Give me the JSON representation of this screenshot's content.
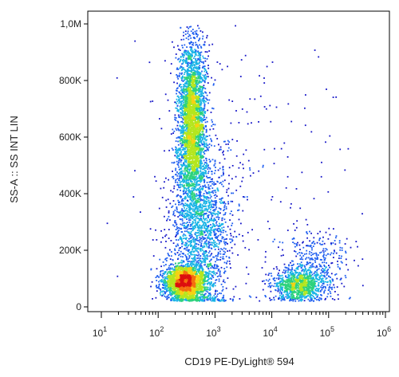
{
  "chart_data": {
    "type": "scatter",
    "subtype": "flow-cytometry density dot plot",
    "xlabel": "CD19 PE-DyLight® 594",
    "ylabel": "SS-A :: SS INT LIN",
    "xscale": "log",
    "yscale": "linear",
    "xlim": [
      10,
      1000000
    ],
    "ylim": [
      0,
      1000000
    ],
    "x_ticks": [
      {
        "value": 10,
        "base": "10",
        "exp": "1"
      },
      {
        "value": 100,
        "base": "10",
        "exp": "2"
      },
      {
        "value": 1000,
        "base": "10",
        "exp": "3"
      },
      {
        "value": 10000,
        "base": "10",
        "exp": "4"
      },
      {
        "value": 100000,
        "base": "10",
        "exp": "5"
      },
      {
        "value": 1000000,
        "base": "10",
        "exp": "6"
      }
    ],
    "y_ticks": [
      {
        "value": 0,
        "label": "0"
      },
      {
        "value": 200000,
        "label": "200K"
      },
      {
        "value": 400000,
        "label": "400K"
      },
      {
        "value": 600000,
        "label": "600K"
      },
      {
        "value": 800000,
        "label": "800K"
      },
      {
        "value": 1000000,
        "label": "1,0M"
      }
    ],
    "color_scale": [
      "#1515c8",
      "#1e5ef0",
      "#19b4e6",
      "#2dd27d",
      "#b4e61e",
      "#f5d214",
      "#f56e0f",
      "#dc0f0f"
    ],
    "populations": [
      {
        "x_center": 400,
        "x_spread_decades": 0.12,
        "y_center": 650000,
        "y_spread": 150000,
        "weight": 0.37
      },
      {
        "x_center": 550,
        "x_spread_decades": 0.28,
        "y_center": 260000,
        "y_spread": 150000,
        "weight": 0.2
      },
      {
        "x_center": 300,
        "x_spread_decades": 0.18,
        "y_center": 85000,
        "y_spread": 30000,
        "weight": 0.25
      },
      {
        "x_center": 30000,
        "x_spread_decades": 0.22,
        "y_center": 75000,
        "y_spread": 28000,
        "weight": 0.11
      },
      {
        "x_center": 60000,
        "x_spread_decades": 0.3,
        "y_center": 150000,
        "y_spread": 60000,
        "weight": 0.04
      },
      {
        "x_center": 3000,
        "x_spread_decades": 1.0,
        "y_center": 400000,
        "y_spread": 300000,
        "weight": 0.03
      }
    ]
  }
}
